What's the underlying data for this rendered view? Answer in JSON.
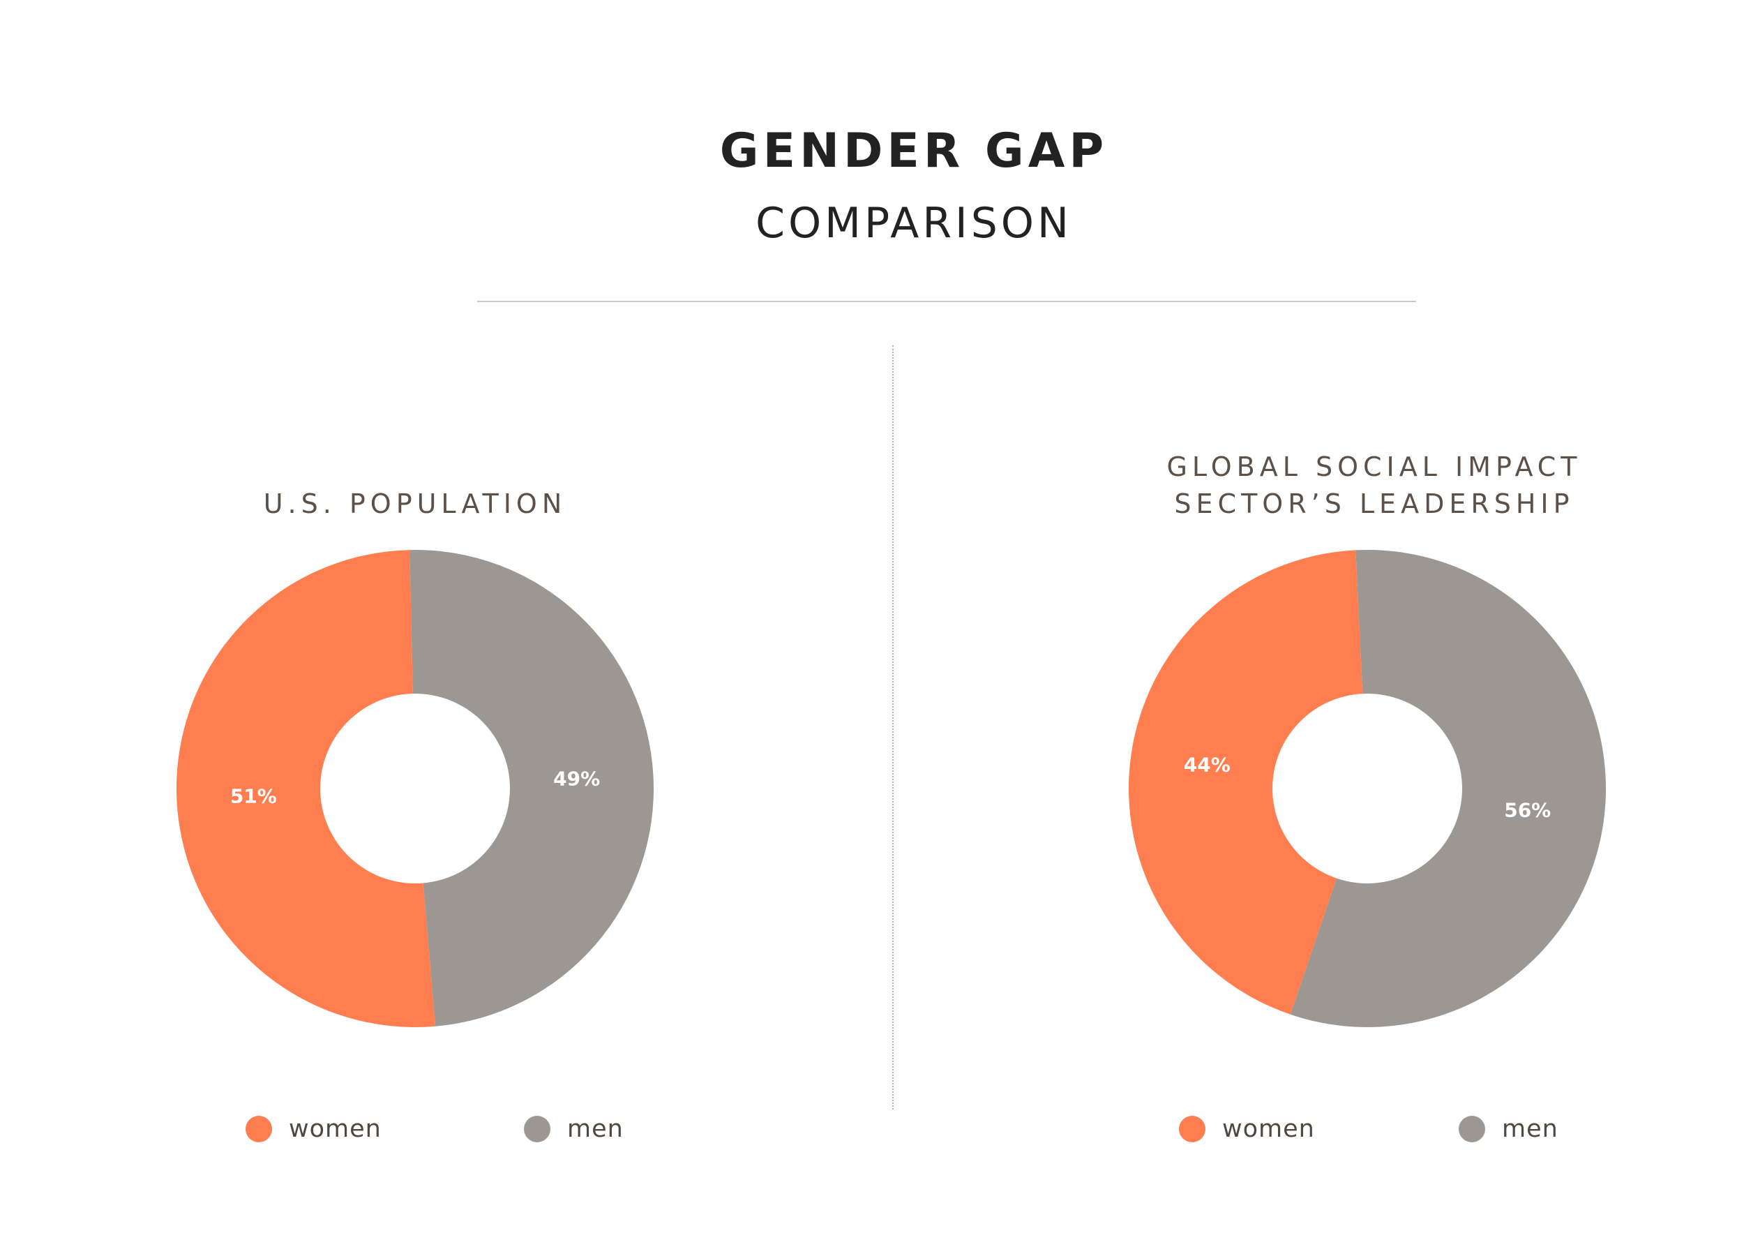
{
  "header": {
    "title": "GENDER GAP",
    "subtitle": "COMPARISON"
  },
  "colors": {
    "women": "#FF7E50",
    "men": "#9C9792"
  },
  "chart_data": [
    {
      "type": "pie",
      "variant": "donut",
      "title": "U.S. POPULATION",
      "categories": [
        "women",
        "men"
      ],
      "values": [
        51,
        49
      ],
      "labels": [
        "51%",
        "49%"
      ],
      "colors": [
        "#FF7E50",
        "#9C9792"
      ],
      "legend": {
        "placement": "bottom",
        "entries": [
          "women",
          "men"
        ]
      }
    },
    {
      "type": "pie",
      "variant": "donut",
      "title_lines": [
        "GLOBAL SOCIAL IMPACT",
        "SECTOR’S LEADERSHIP"
      ],
      "categories": [
        "women",
        "men"
      ],
      "values": [
        44,
        56
      ],
      "labels": [
        "44%",
        "56%"
      ],
      "colors": [
        "#FF7E50",
        "#9C9792"
      ],
      "legend": {
        "placement": "bottom",
        "entries": [
          "women",
          "men"
        ]
      }
    }
  ]
}
